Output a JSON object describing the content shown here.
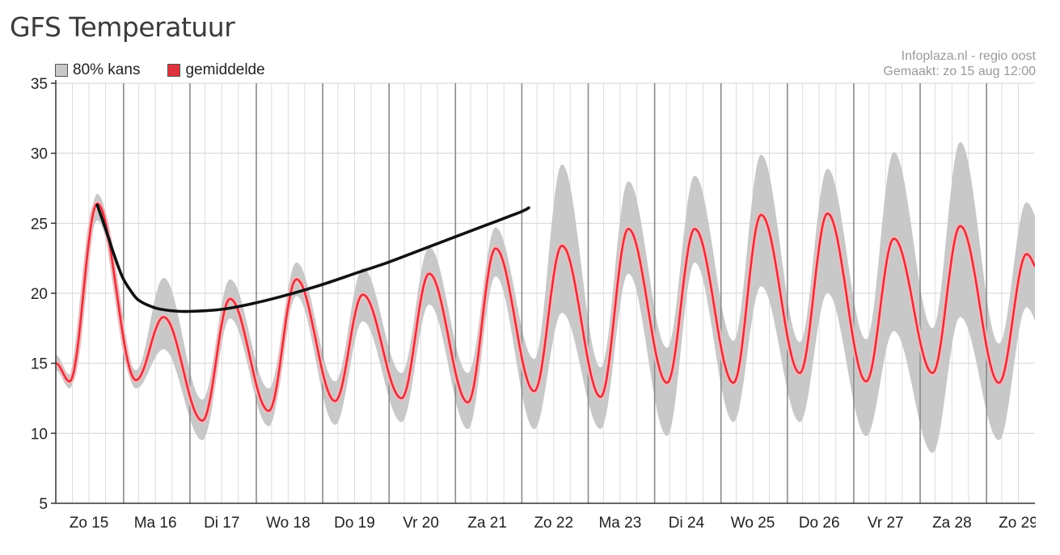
{
  "title": "GFS Temperatuur",
  "source_line1": "Infoplaza.nl - regio oost",
  "source_line2": "Gemaakt: zo 15 aug 12:00",
  "colors": {
    "band": "#c8c8c8",
    "mean": "#e0323c",
    "mean_halo": "#f2b9bd",
    "overlay": "#111111"
  },
  "chart_data": {
    "type": "line",
    "legend": [
      {
        "label": "80% kans",
        "color": "#c8c8c8"
      },
      {
        "label": "gemiddelde",
        "color": "#e0323c"
      }
    ],
    "x_unit": "hours since zo 15 00:00",
    "xlim": [
      0,
      354
    ],
    "ylim": [
      5,
      35
    ],
    "yticks": [
      5,
      10,
      15,
      20,
      25,
      30,
      35
    ],
    "categories": [
      "Zo 15",
      "Ma 16",
      "Di 17",
      "Wo 18",
      "Do 19",
      "Vr 20",
      "Za 21",
      "Zo 22",
      "Ma 23",
      "Di 24",
      "Wo 25",
      "Do 26",
      "Vr 27",
      "Za 28",
      "Zo 29"
    ],
    "days_daily": [
      {
        "day": "Zo 15",
        "min": 13.7,
        "max": 26.4,
        "lo_min": 13.2,
        "lo_max": 25.2,
        "hi_min": 14.2,
        "hi_max": 27.1
      },
      {
        "day": "Ma 16",
        "min": 13.8,
        "max": 18.3,
        "lo_min": 13.2,
        "lo_max": 16.0,
        "hi_min": 14.5,
        "hi_max": 21.1
      },
      {
        "day": "Di 17",
        "min": 10.9,
        "max": 19.6,
        "lo_min": 9.5,
        "lo_max": 18.2,
        "hi_min": 12.4,
        "hi_max": 21.0
      },
      {
        "day": "Wo 18",
        "min": 11.6,
        "max": 21.0,
        "lo_min": 10.5,
        "lo_max": 19.8,
        "hi_min": 13.2,
        "hi_max": 22.2
      },
      {
        "day": "Do 19",
        "min": 12.3,
        "max": 19.9,
        "lo_min": 10.6,
        "lo_max": 18.0,
        "hi_min": 13.7,
        "hi_max": 21.8
      },
      {
        "day": "Vr 20",
        "min": 12.5,
        "max": 21.4,
        "lo_min": 10.8,
        "lo_max": 19.2,
        "hi_min": 14.3,
        "hi_max": 23.3
      },
      {
        "day": "Za 21",
        "min": 12.2,
        "max": 23.2,
        "lo_min": 10.3,
        "lo_max": 21.2,
        "hi_min": 14.3,
        "hi_max": 24.7
      },
      {
        "day": "Zo 22",
        "min": 13.0,
        "max": 23.4,
        "lo_min": 10.3,
        "lo_max": 18.6,
        "hi_min": 15.3,
        "hi_max": 29.2
      },
      {
        "day": "Ma 23",
        "min": 12.6,
        "max": 24.6,
        "lo_min": 10.3,
        "lo_max": 21.4,
        "hi_min": 14.7,
        "hi_max": 28.0
      },
      {
        "day": "Di 24",
        "min": 13.6,
        "max": 24.6,
        "lo_min": 9.8,
        "lo_max": 22.2,
        "hi_min": 16.1,
        "hi_max": 28.4
      },
      {
        "day": "Wo 25",
        "min": 13.6,
        "max": 25.6,
        "lo_min": 10.8,
        "lo_max": 20.5,
        "hi_min": 16.6,
        "hi_max": 29.9
      },
      {
        "day": "Do 26",
        "min": 14.3,
        "max": 25.7,
        "lo_min": 10.8,
        "lo_max": 20.0,
        "hi_min": 16.5,
        "hi_max": 28.9
      },
      {
        "day": "Vr 27",
        "min": 13.7,
        "max": 23.9,
        "lo_min": 9.8,
        "lo_max": 17.3,
        "hi_min": 16.7,
        "hi_max": 30.1
      },
      {
        "day": "Za 28",
        "min": 14.3,
        "max": 24.8,
        "lo_min": 8.6,
        "lo_max": 18.3,
        "hi_min": 17.5,
        "hi_max": 30.8
      },
      {
        "day": "Zo 29",
        "min": 13.6,
        "max": 22.8,
        "lo_min": 9.5,
        "lo_max": 19.0,
        "hi_min": 16.4,
        "hi_max": 26.5
      }
    ],
    "series": [
      {
        "name": "gemiddelde",
        "start": 15.0
      },
      {
        "name": "80% kans"
      }
    ],
    "overlay_curve": [
      [
        15,
        26.3
      ],
      [
        18,
        24.6
      ],
      [
        21,
        22.8
      ],
      [
        24,
        21.2
      ],
      [
        27,
        20.2
      ],
      [
        30,
        19.5
      ],
      [
        36,
        18.95
      ],
      [
        42,
        18.75
      ],
      [
        48,
        18.7
      ],
      [
        60,
        18.85
      ],
      [
        72,
        19.3
      ],
      [
        84,
        19.9
      ],
      [
        96,
        20.6
      ],
      [
        108,
        21.4
      ],
      [
        120,
        22.2
      ],
      [
        132,
        23.1
      ],
      [
        144,
        24.0
      ],
      [
        156,
        24.9
      ],
      [
        168,
        25.8
      ],
      [
        171,
        26.1
      ]
    ]
  }
}
